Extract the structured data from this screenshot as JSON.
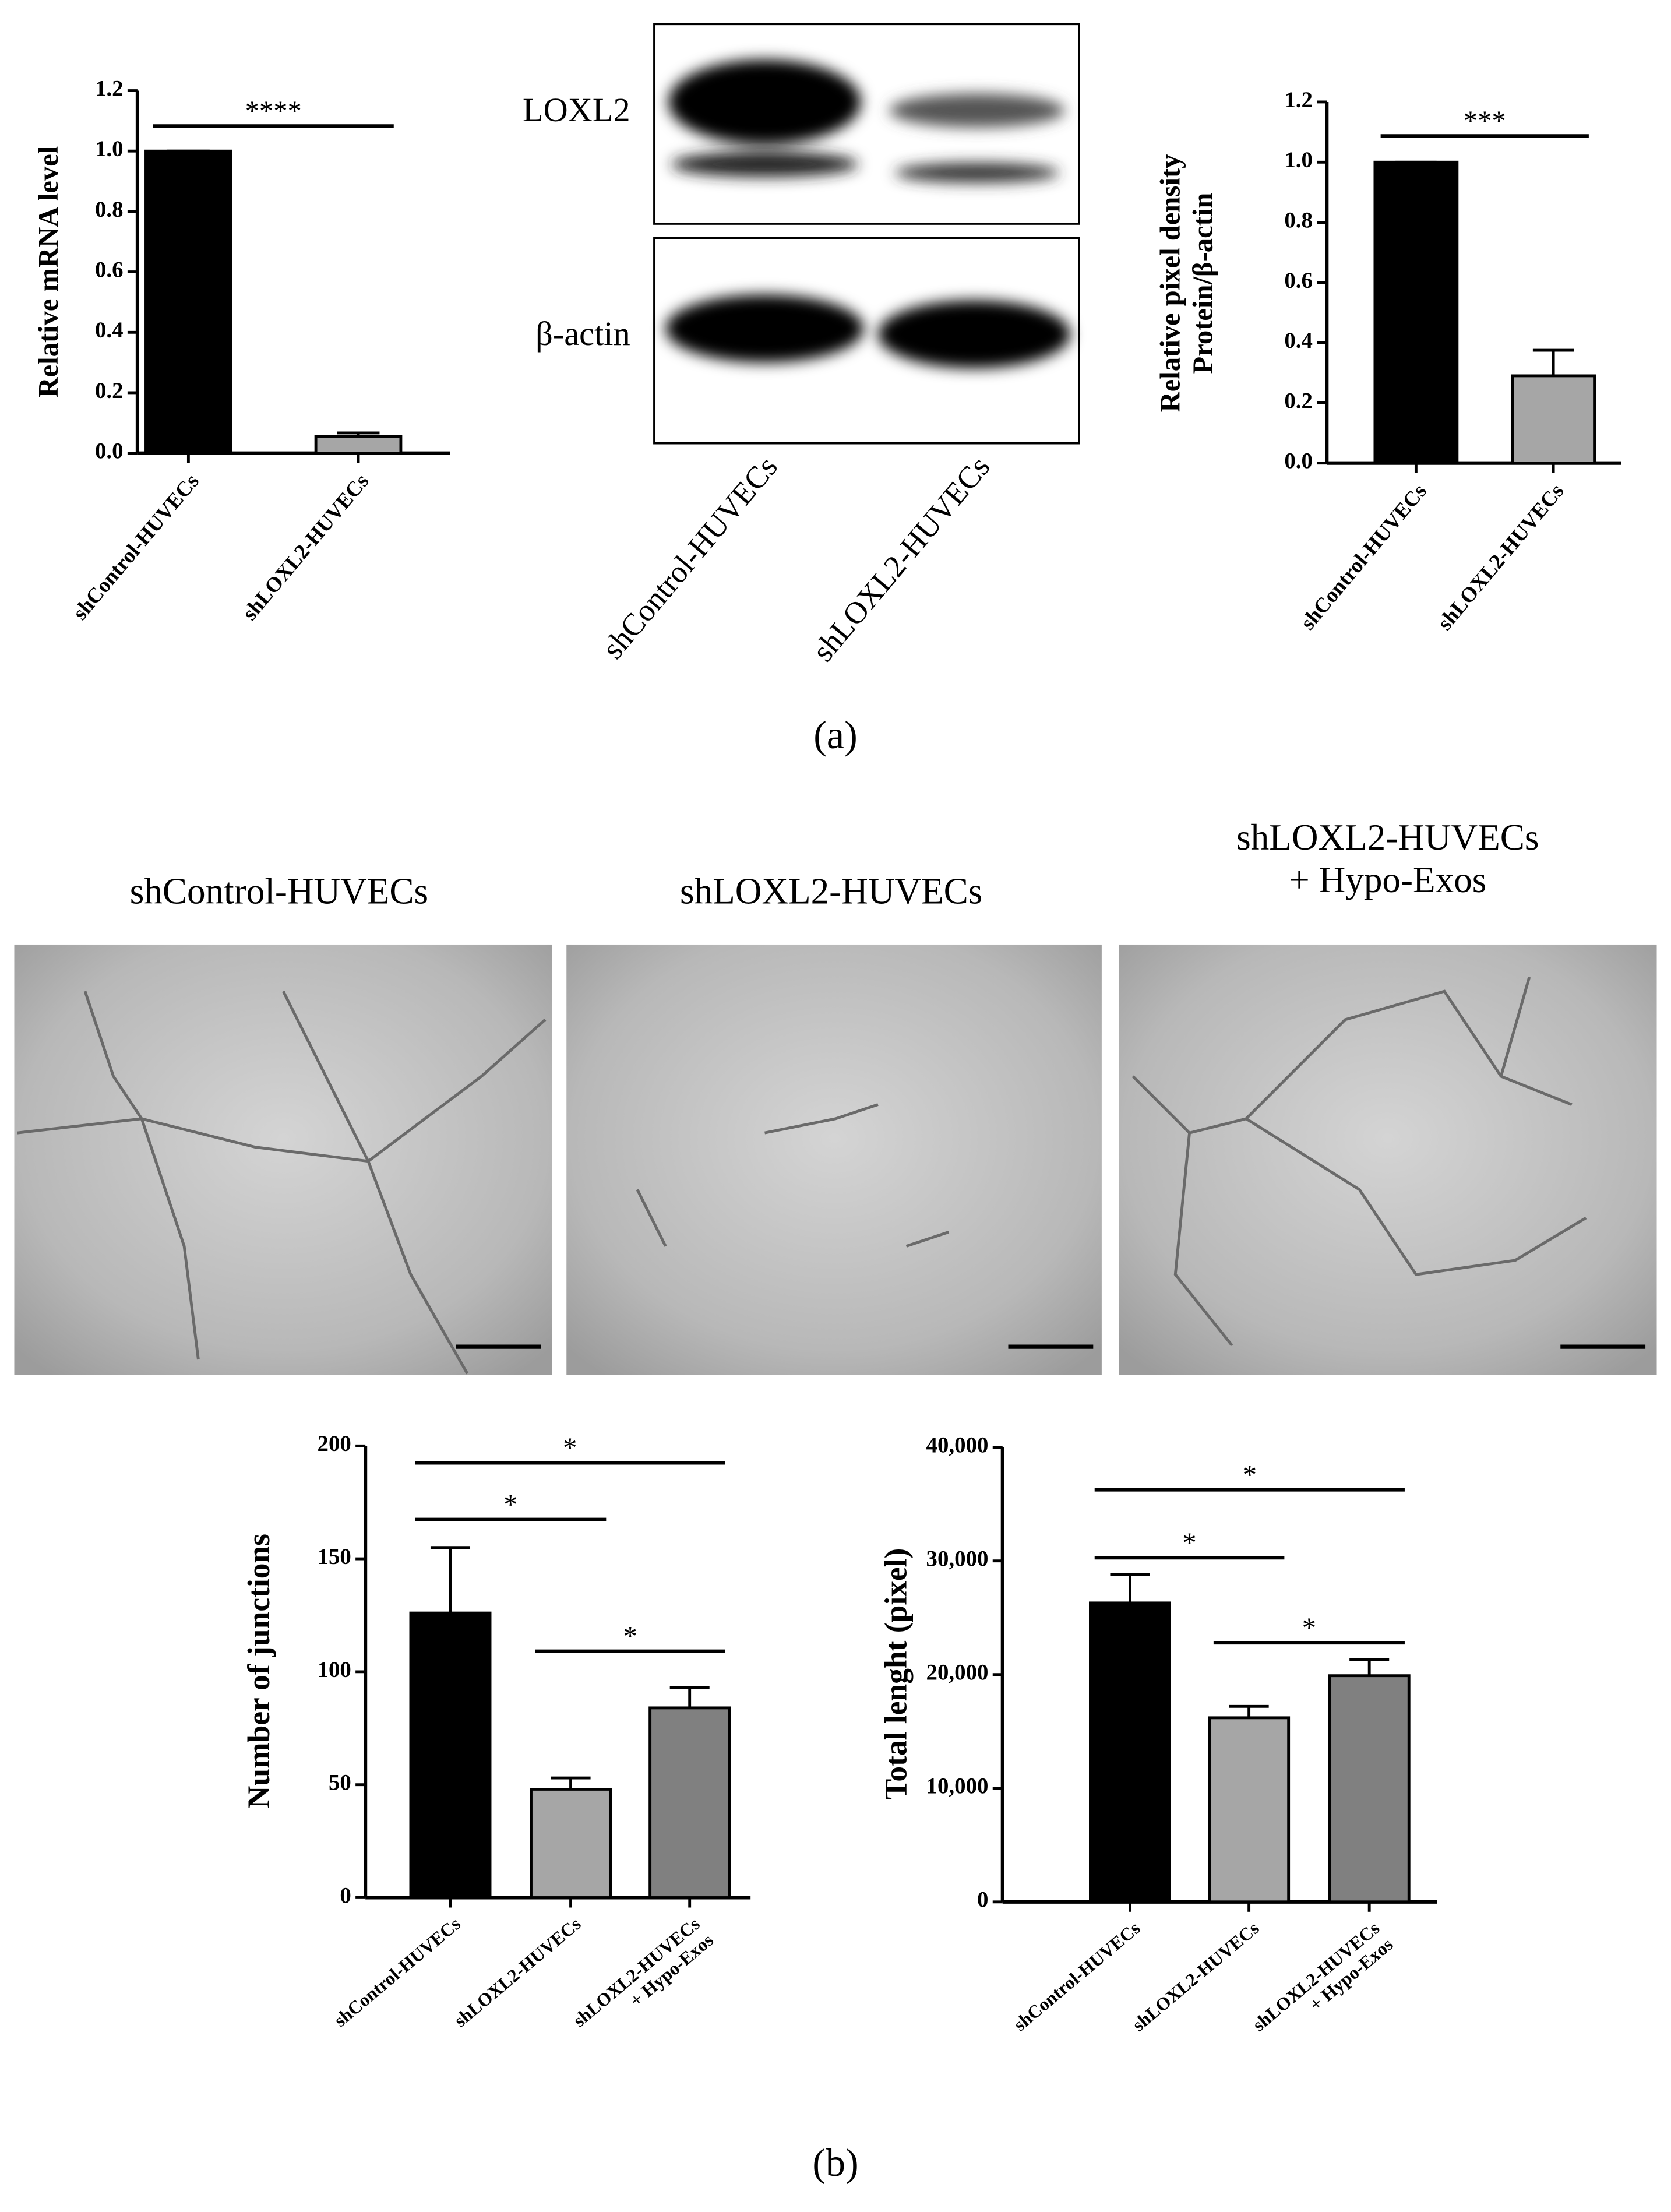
{
  "panel_labels": [
    "(a)",
    "(b)"
  ],
  "blot": {
    "rows": [
      "LOXL2",
      "β-actin"
    ],
    "lanes": [
      "shControl-HUVECs",
      "shLOXL2-HUVECs"
    ]
  },
  "micrographs": [
    "shControl-HUVECs",
    "shLOXL2-HUVECs",
    "shLOXL2-HUVECs\n+ Hypo-Exos"
  ],
  "chart_data": [
    {
      "type": "bar",
      "y_label": "Relative mRNA level",
      "categories": [
        "shControl-HUVECs",
        "shLOXL2-HUVECs"
      ],
      "values": [
        1.0,
        0.055
      ],
      "errors": [
        0,
        0.012
      ],
      "colors": [
        "#000000",
        "#a6a6a6"
      ],
      "ylim": [
        0,
        1.2
      ],
      "yticks": [
        {
          "value": 0,
          "label": "0.0"
        },
        {
          "value": 0.2,
          "label": "0.2"
        },
        {
          "value": 0.4,
          "label": "0.4"
        },
        {
          "value": 0.6,
          "label": "0.6"
        },
        {
          "value": 0.8,
          "label": "0.8"
        },
        {
          "value": 1.0,
          "label": "1.0"
        },
        {
          "value": 1.2,
          "label": "1.2"
        }
      ],
      "comparisons": [
        {
          "text": "****",
          "between": [
            0,
            1
          ]
        }
      ]
    },
    {
      "type": "bar",
      "y_label": "Relative pixel density\nProtein/β-actin",
      "categories": [
        "shControl-HUVECs",
        "shLOXL2-HUVECs"
      ],
      "values": [
        1.0,
        0.29
      ],
      "errors": [
        0,
        0.085
      ],
      "colors": [
        "#000000",
        "#a6a6a6"
      ],
      "ylim": [
        0,
        1.2
      ],
      "yticks": [
        {
          "value": 0,
          "label": "0.0"
        },
        {
          "value": 0.2,
          "label": "0.2"
        },
        {
          "value": 0.4,
          "label": "0.4"
        },
        {
          "value": 0.6,
          "label": "0.6"
        },
        {
          "value": 0.8,
          "label": "0.8"
        },
        {
          "value": 1.0,
          "label": "1.0"
        },
        {
          "value": 1.2,
          "label": "1.2"
        }
      ],
      "comparisons": [
        {
          "text": "***",
          "between": [
            0,
            1
          ]
        }
      ]
    },
    {
      "type": "bar",
      "y_label": "Number of junctions",
      "categories": [
        "shControl-HUVECs",
        "shLOXL2-HUVECs",
        "shLOXL2-HUVECs\n+ Hypo-Exos"
      ],
      "values": [
        126,
        48,
        84
      ],
      "errors": [
        29,
        5,
        9
      ],
      "colors": [
        "#000000",
        "#a6a6a6",
        "#808080"
      ],
      "ylim": [
        0,
        200
      ],
      "yticks": [
        0,
        50,
        100,
        150,
        200
      ],
      "comparisons": [
        {
          "text": "*",
          "between": [
            0,
            1
          ]
        },
        {
          "text": "*",
          "between": [
            0,
            2
          ]
        },
        {
          "text": "*",
          "between": [
            1,
            2
          ]
        }
      ]
    },
    {
      "type": "bar",
      "y_label": "Total lenght (pixel)",
      "categories": [
        "shControl-HUVECs",
        "shLOXL2-HUVECs",
        "shLOXL2-HUVECs\n+ Hypo-Exos"
      ],
      "values": [
        26300,
        16200,
        19900
      ],
      "errors": [
        2500,
        1000,
        1400
      ],
      "colors": [
        "#000000",
        "#a6a6a6",
        "#808080"
      ],
      "ylim": [
        0,
        40000
      ],
      "yticks": [
        0,
        {
          "value": 10000,
          "label": "10,000"
        },
        {
          "value": 20000,
          "label": "20,000"
        },
        {
          "value": 30000,
          "label": "30,000"
        },
        {
          "value": 40000,
          "label": "40,000"
        }
      ],
      "comparisons": [
        {
          "text": "*",
          "between": [
            0,
            1
          ]
        },
        {
          "text": "*",
          "between": [
            0,
            2
          ]
        },
        {
          "text": "*",
          "between": [
            1,
            2
          ]
        }
      ]
    }
  ]
}
